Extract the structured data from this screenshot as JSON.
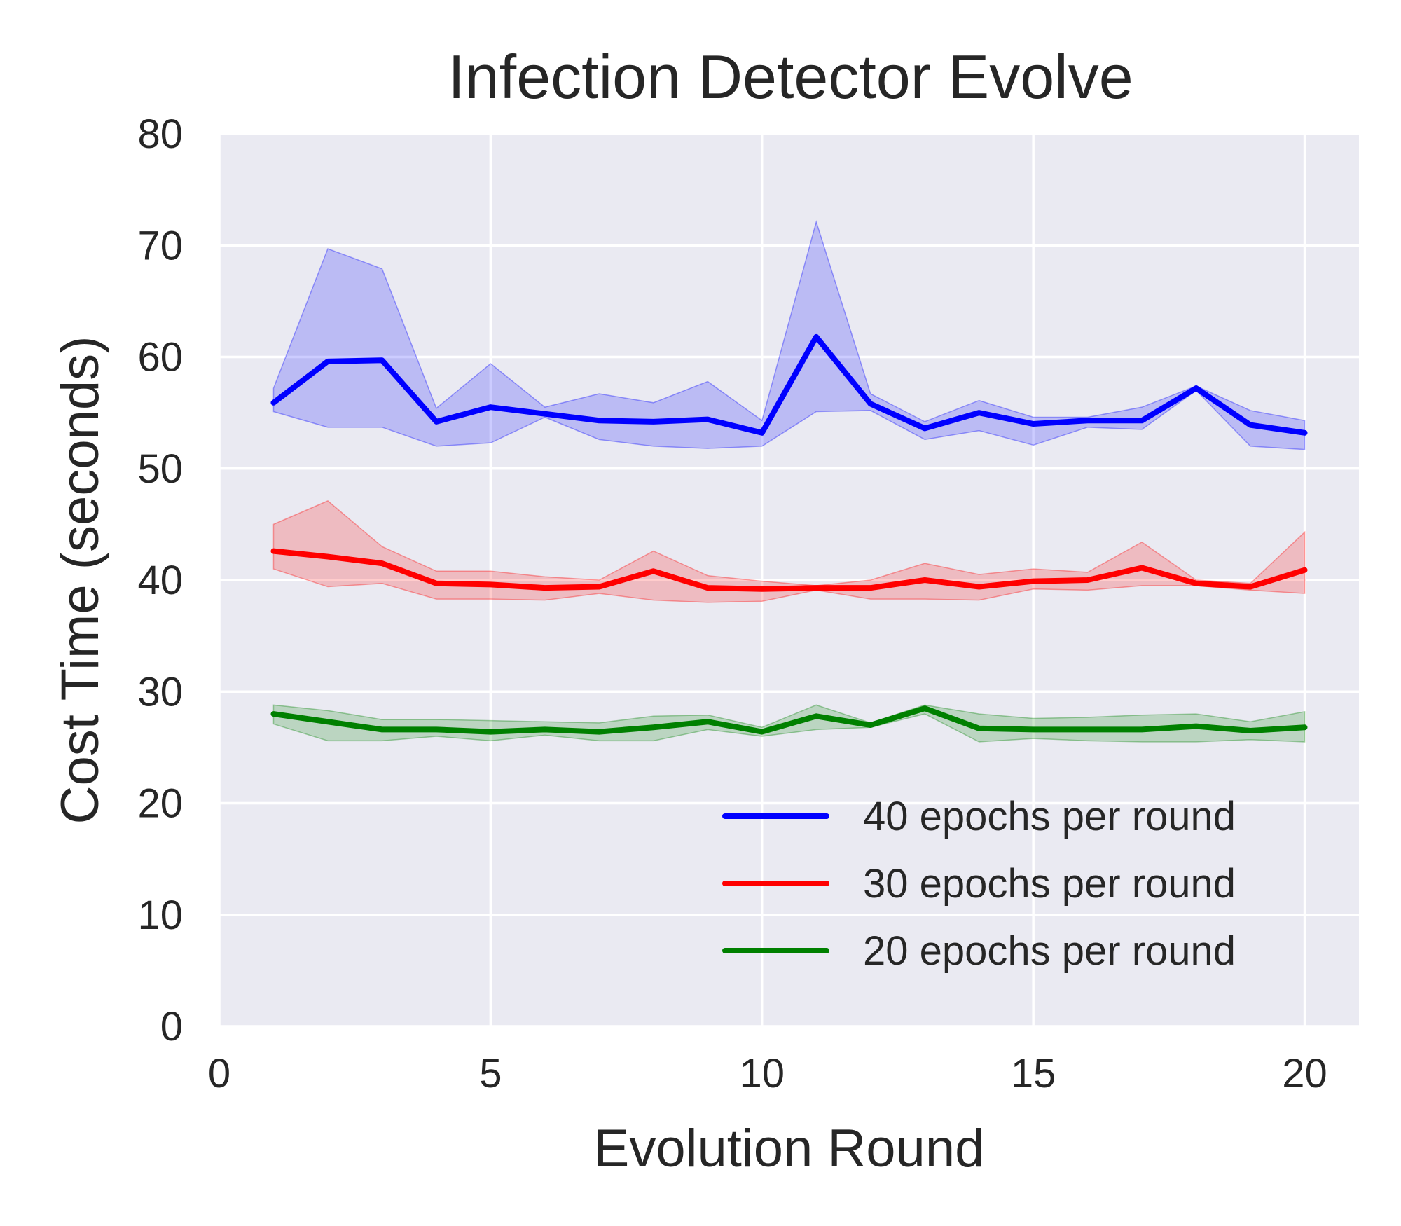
{
  "chart_data": {
    "type": "line",
    "title": "Infection Detector Evolve",
    "xlabel": "Evolution Round",
    "ylabel": "Cost Time (seconds)",
    "xlim": [
      0,
      21
    ],
    "ylim": [
      0,
      80
    ],
    "xticks": [
      0,
      5,
      10,
      15,
      20
    ],
    "yticks": [
      0,
      10,
      20,
      30,
      40,
      50,
      60,
      70,
      80
    ],
    "grid": true,
    "legend_position": "lower-right",
    "background_color": "#eaeaf2",
    "grid_color": "#ffffff",
    "x": [
      1,
      2,
      3,
      4,
      5,
      6,
      7,
      8,
      9,
      10,
      11,
      12,
      13,
      14,
      15,
      16,
      17,
      18,
      19,
      20
    ],
    "series": [
      {
        "name": "40 epochs per round",
        "color": "#0000ff",
        "values": [
          55.9,
          59.6,
          59.7,
          54.2,
          55.5,
          54.9,
          54.3,
          54.2,
          54.4,
          53.2,
          61.8,
          55.8,
          53.6,
          55.0,
          54.0,
          54.3,
          54.3,
          57.2,
          53.9,
          53.2
        ],
        "upper": [
          57.2,
          69.7,
          67.9,
          55.4,
          59.4,
          55.5,
          56.7,
          55.9,
          57.8,
          54.3,
          72.1,
          56.7,
          54.2,
          56.1,
          54.6,
          54.6,
          55.5,
          57.4,
          55.2,
          54.3
        ],
        "lower": [
          55.1,
          53.7,
          53.7,
          52.0,
          52.3,
          54.6,
          52.6,
          52.0,
          51.8,
          52.0,
          55.1,
          55.2,
          52.6,
          53.4,
          52.1,
          53.7,
          53.5,
          57.0,
          52.0,
          51.7
        ]
      },
      {
        "name": "30 epochs per round",
        "color": "#ff0000",
        "values": [
          42.6,
          42.1,
          41.5,
          39.7,
          39.6,
          39.3,
          39.4,
          40.8,
          39.3,
          39.2,
          39.3,
          39.3,
          40.0,
          39.4,
          39.9,
          40.0,
          41.1,
          39.7,
          39.4,
          40.9
        ],
        "upper": [
          45.0,
          47.1,
          43.0,
          40.8,
          40.8,
          40.3,
          40.0,
          42.6,
          40.4,
          39.9,
          39.5,
          40.0,
          41.5,
          40.5,
          41.0,
          40.7,
          43.4,
          40.0,
          39.7,
          44.3
        ],
        "lower": [
          41.0,
          39.4,
          39.7,
          38.3,
          38.3,
          38.2,
          38.8,
          38.2,
          38.0,
          38.1,
          39.1,
          38.3,
          38.3,
          38.2,
          39.2,
          39.1,
          39.5,
          39.5,
          39.1,
          38.8
        ]
      },
      {
        "name": "20 epochs per round",
        "color": "#008000",
        "values": [
          28.0,
          27.3,
          26.6,
          26.6,
          26.4,
          26.6,
          26.4,
          26.8,
          27.3,
          26.4,
          27.8,
          27.0,
          28.5,
          26.7,
          26.6,
          26.6,
          26.6,
          26.9,
          26.5,
          26.8
        ],
        "upper": [
          28.8,
          28.3,
          27.5,
          27.5,
          27.4,
          27.3,
          27.2,
          27.8,
          27.9,
          26.8,
          28.8,
          27.2,
          28.8,
          28.0,
          27.6,
          27.7,
          27.9,
          28.0,
          27.3,
          28.2
        ],
        "lower": [
          27.1,
          25.6,
          25.6,
          26.0,
          25.6,
          26.1,
          25.6,
          25.6,
          26.6,
          26.0,
          26.6,
          26.8,
          28.0,
          25.5,
          25.8,
          25.6,
          25.5,
          25.5,
          25.7,
          25.5
        ]
      }
    ]
  }
}
